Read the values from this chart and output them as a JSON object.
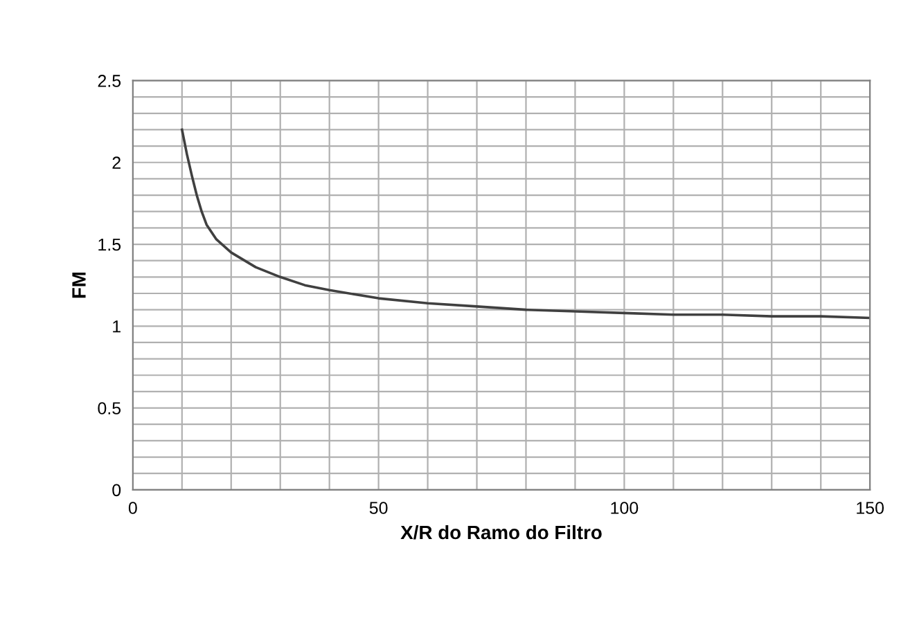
{
  "chart_data": {
    "type": "line",
    "xlabel": "X/R do Ramo do Filtro",
    "ylabel": "FM",
    "x": [
      10,
      11,
      12,
      13,
      14,
      15,
      17,
      20,
      25,
      30,
      35,
      40,
      50,
      60,
      70,
      80,
      90,
      100,
      110,
      120,
      130,
      140,
      150
    ],
    "series": [
      {
        "color": "#404040",
        "values": [
          2.2,
          2.05,
          1.92,
          1.8,
          1.7,
          1.62,
          1.53,
          1.45,
          1.36,
          1.3,
          1.25,
          1.22,
          1.17,
          1.14,
          1.12,
          1.1,
          1.09,
          1.08,
          1.07,
          1.07,
          1.06,
          1.06,
          1.05
        ]
      }
    ],
    "xlim": [
      0,
      150
    ],
    "xticks": [
      0,
      {
        "value": 10,
        "label": null
      },
      {
        "value": 20,
        "label": null
      },
      {
        "value": 30,
        "label": null
      },
      {
        "value": 40,
        "label": null
      },
      50,
      {
        "value": 60,
        "label": null
      },
      {
        "value": 70,
        "label": null
      },
      {
        "value": 80,
        "label": null
      },
      {
        "value": 90,
        "label": null
      },
      100,
      {
        "value": 110,
        "label": null
      },
      {
        "value": 120,
        "label": null
      },
      {
        "value": 130,
        "label": null
      },
      {
        "value": 140,
        "label": null
      },
      150
    ],
    "ylim": [
      0,
      2.5
    ],
    "yticks": [
      0,
      {
        "value": 0.1,
        "label": null
      },
      {
        "value": 0.2,
        "label": null
      },
      {
        "value": 0.3,
        "label": null
      },
      {
        "value": 0.4,
        "label": null
      },
      0.5,
      {
        "value": 0.6,
        "label": null
      },
      {
        "value": 0.7,
        "label": null
      },
      {
        "value": 0.8,
        "label": null
      },
      {
        "value": 0.9,
        "label": null
      },
      1,
      {
        "value": 1.1,
        "label": null
      },
      {
        "value": 1.2,
        "label": null
      },
      {
        "value": 1.3,
        "label": null
      },
      {
        "value": 1.4,
        "label": null
      },
      1.5,
      {
        "value": 1.6,
        "label": null
      },
      {
        "value": 1.7,
        "label": null
      },
      {
        "value": 1.8,
        "label": null
      },
      {
        "value": 1.9,
        "label": null
      },
      2,
      {
        "value": 2.1,
        "label": null
      },
      {
        "value": 2.2,
        "label": null
      },
      {
        "value": 2.3,
        "label": null
      },
      {
        "value": 2.4,
        "label": null
      },
      2.5
    ],
    "grid": true,
    "marker": "none",
    "line_style": "solid"
  }
}
